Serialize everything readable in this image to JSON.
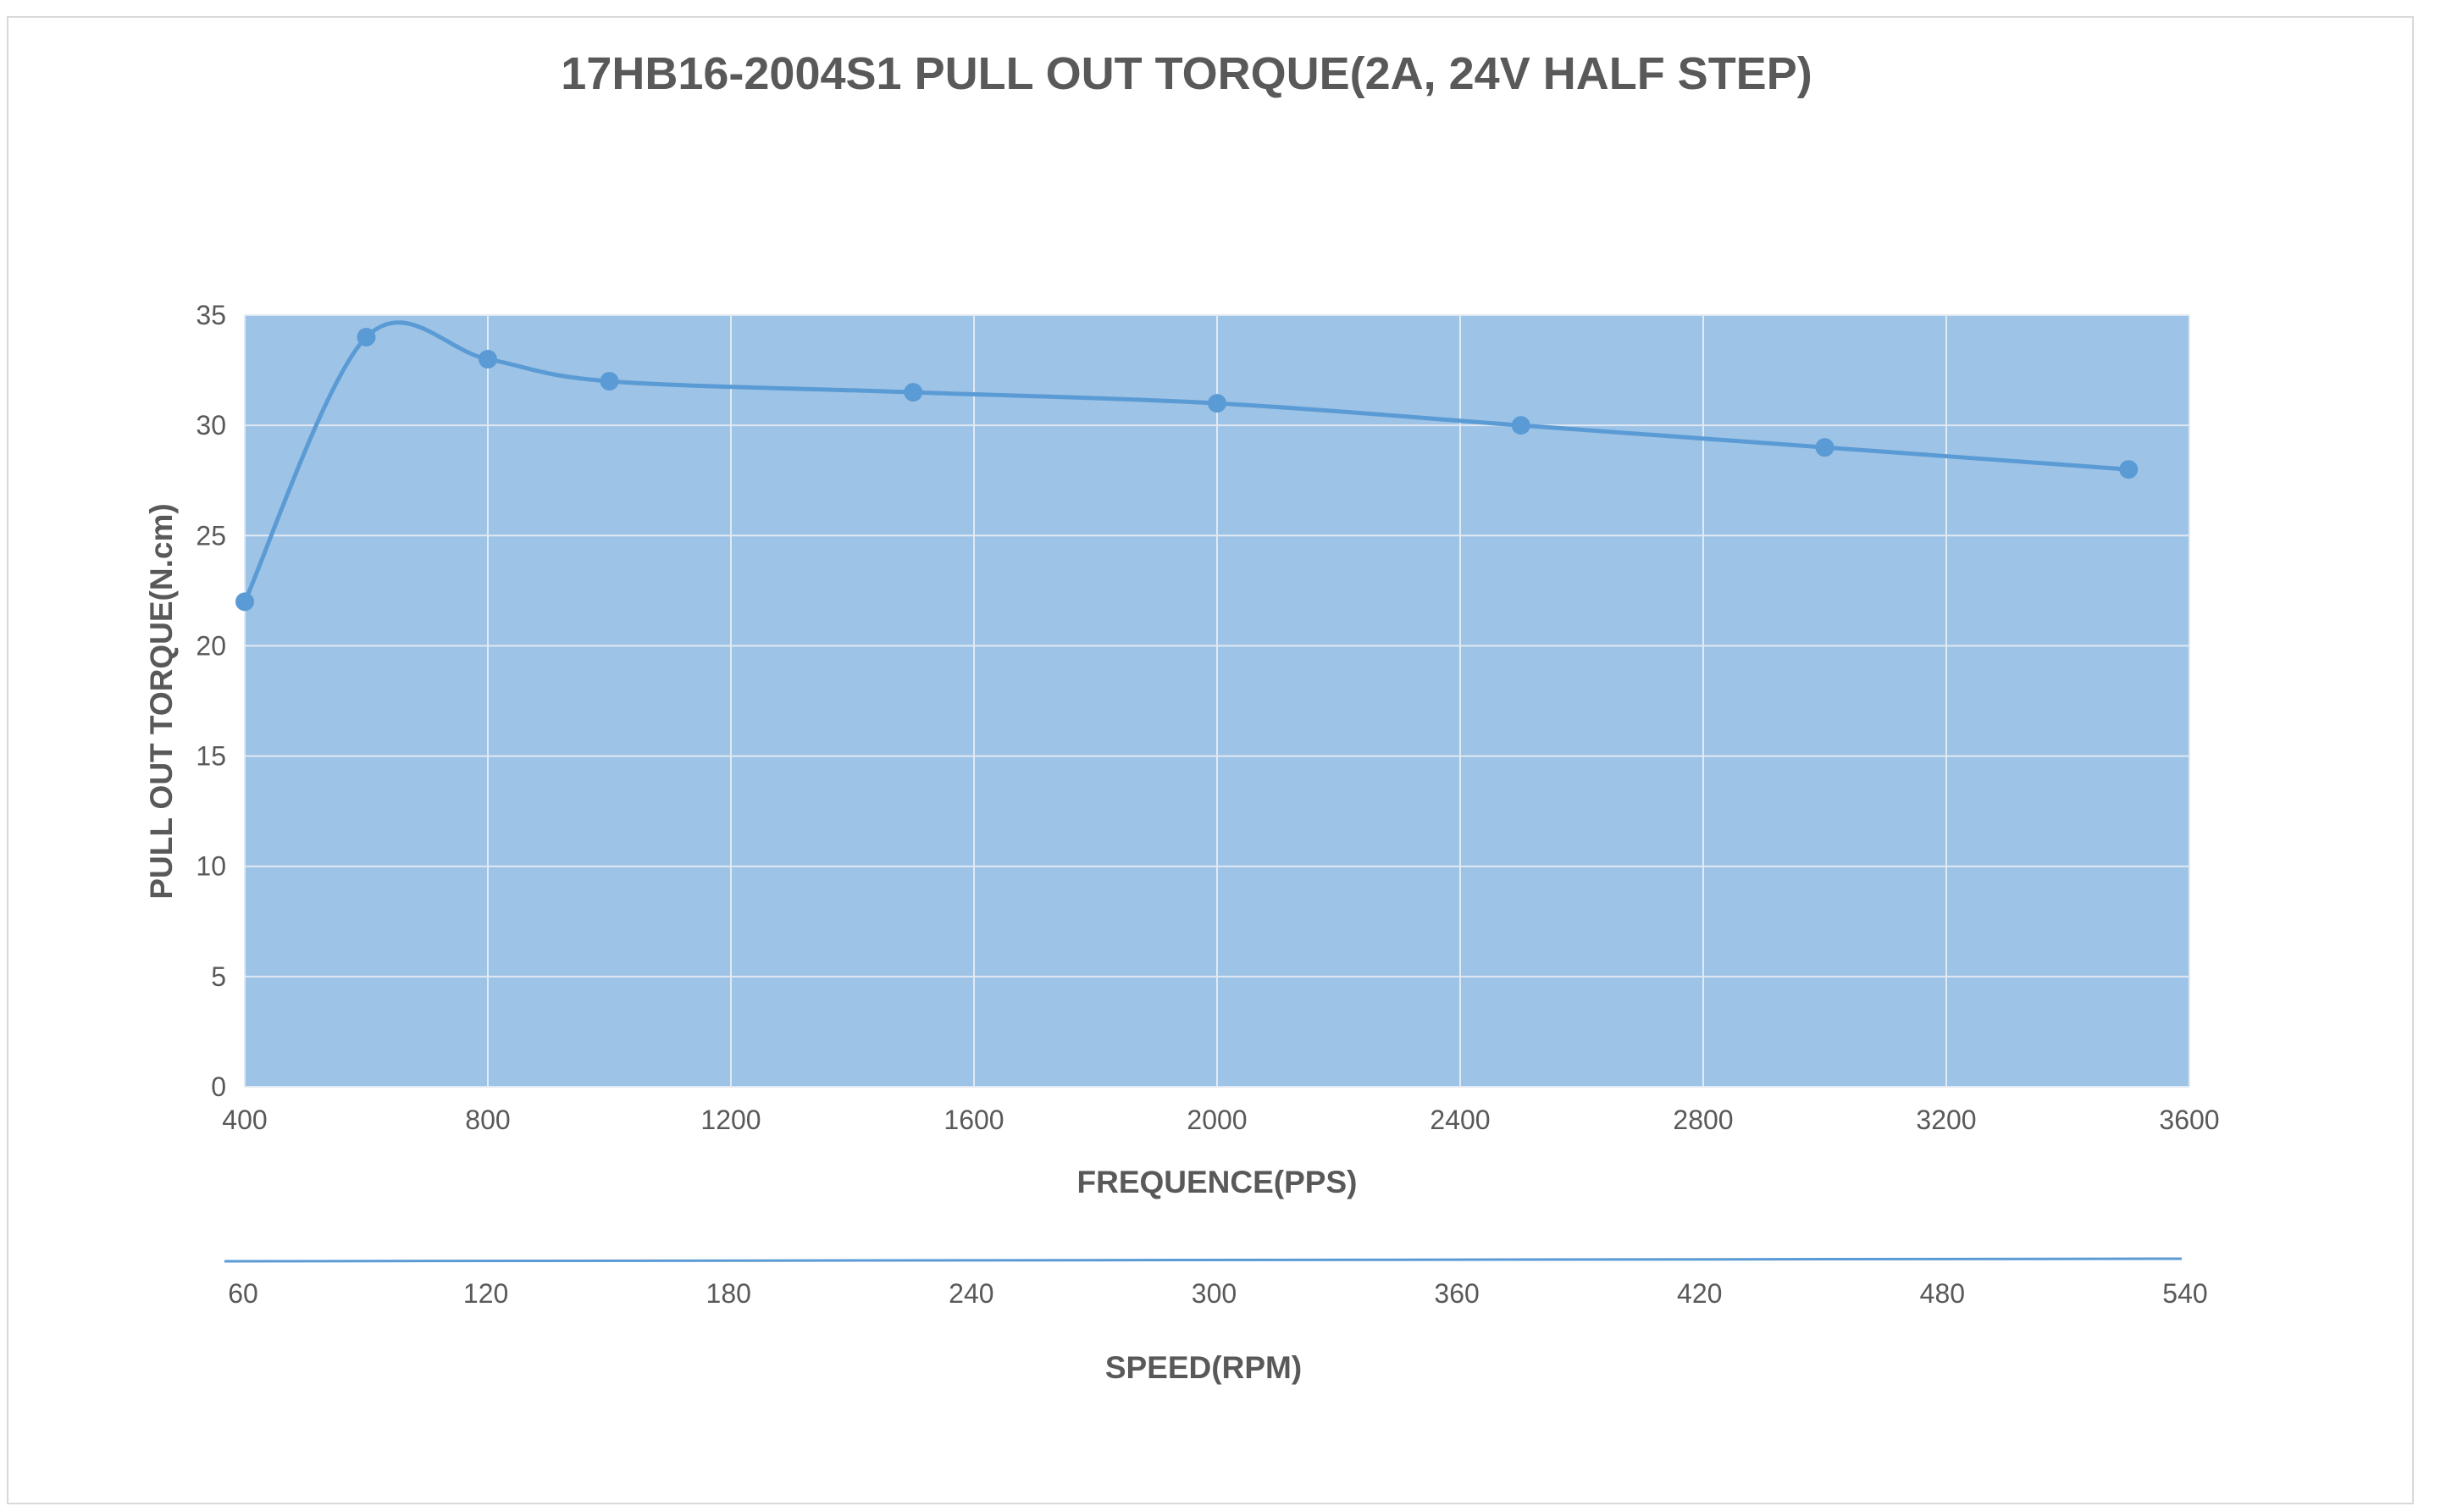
{
  "chart_data": {
    "type": "line",
    "title": "17HB16-2004S1 PULL OUT TORQUE(2A, 24V HALF STEP)",
    "xlabel": "FREQUENCE(PPS)",
    "ylabel": "PULL OUT TORQUE(N.cm)",
    "x2label": "SPEED(RPM)",
    "xlim": [
      400,
      3600
    ],
    "ylim": [
      0,
      35
    ],
    "x_ticks": [
      "400",
      "800",
      "1200",
      "1600",
      "2000",
      "2400",
      "2800",
      "3200",
      "3600"
    ],
    "y_ticks": [
      "0",
      "5",
      "10",
      "15",
      "20",
      "25",
      "30",
      "35"
    ],
    "x2_ticks": [
      "60",
      "120",
      "180",
      "240",
      "300",
      "360",
      "420",
      "480",
      "540"
    ],
    "grid": true,
    "legend": "none",
    "series": [
      {
        "x": [
          400,
          600,
          800,
          1000,
          1500,
          2000,
          2500,
          3000,
          3500
        ],
        "y": [
          22,
          34,
          33,
          32,
          31.5,
          31,
          30,
          29,
          28
        ]
      }
    ],
    "colors": {
      "plot_background": "#9dc3e6",
      "gridline": "#e1e9f2",
      "line": "#5b9bd5",
      "text": "#595959"
    }
  }
}
